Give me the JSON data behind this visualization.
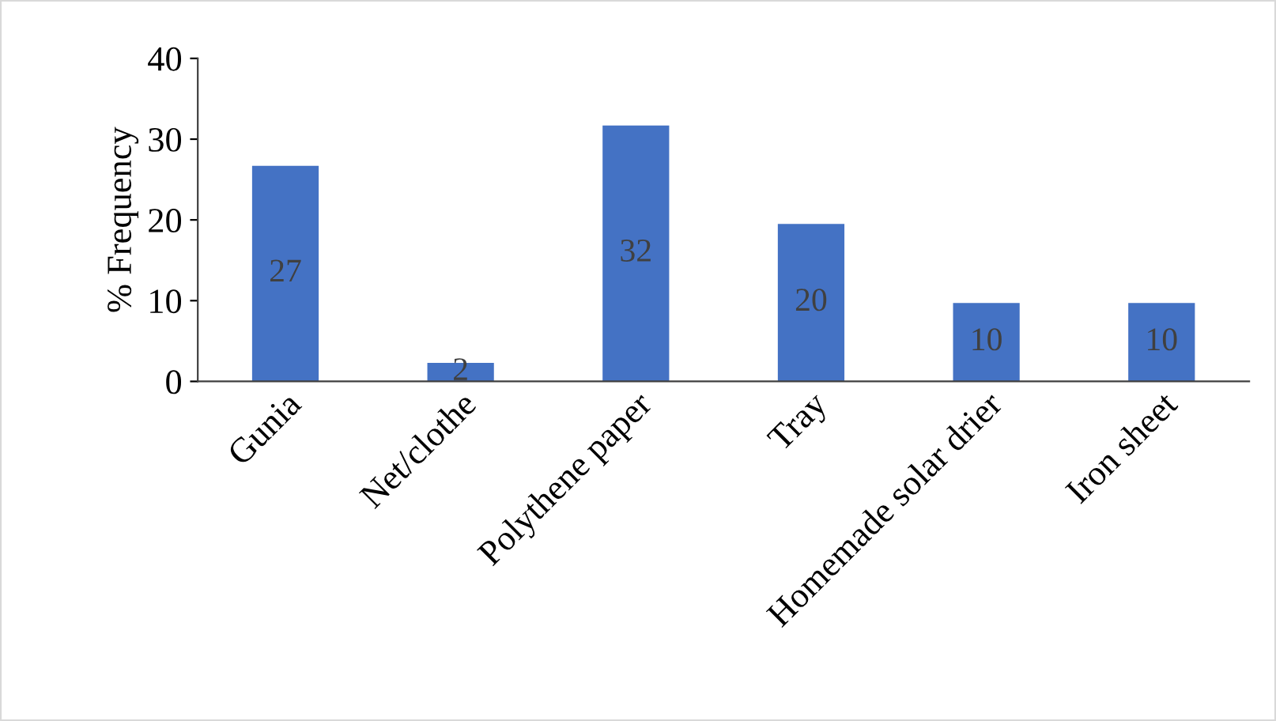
{
  "chart_data": {
    "type": "bar",
    "ylabel": "% Frequency",
    "categories": [
      "Gunia",
      "Net/clothe",
      "Polythene paper",
      "Tray",
      "Homemade solar drier",
      "Iron sheet"
    ],
    "values": [
      26.7,
      2.3,
      31.7,
      19.5,
      9.7,
      9.7
    ],
    "value_labels": [
      "27",
      "2",
      "32",
      "20",
      "10",
      "10"
    ],
    "color": "#4472c4",
    "ylim": [
      0,
      40
    ],
    "yticks": [
      0,
      10,
      20,
      30,
      40
    ],
    "grid": false,
    "legend": false
  }
}
